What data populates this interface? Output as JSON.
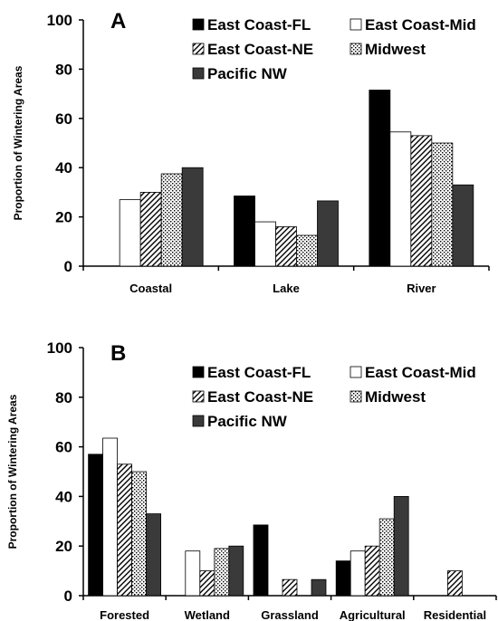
{
  "legend": {
    "series": [
      "East Coast-FL",
      "East Coast-Mid",
      "East Coast-NE",
      "Midwest",
      "Pacific NW"
    ],
    "fills": {
      "East Coast-FL": "#000000",
      "East Coast-Mid": "#ffffff",
      "East Coast-NE": "hatch",
      "Midwest": "dots",
      "Pacific NW": "#3a3a3a"
    }
  },
  "chart_data": [
    {
      "type": "bar",
      "panel_label": "A",
      "ylabel": "Proportion of Wintering Areas",
      "ylim": [
        0,
        100
      ],
      "yticks": [
        0,
        20,
        40,
        60,
        80,
        100
      ],
      "categories": [
        "Coastal",
        "Lake",
        "River"
      ],
      "series": [
        {
          "name": "East Coast-FL",
          "values": [
            0,
            28.5,
            71.5
          ]
        },
        {
          "name": "East Coast-Mid",
          "values": [
            27,
            18,
            54.5
          ]
        },
        {
          "name": "East Coast-NE",
          "values": [
            30,
            16,
            53
          ]
        },
        {
          "name": "Midwest",
          "values": [
            37.5,
            12.5,
            50
          ]
        },
        {
          "name": "Pacific NW",
          "values": [
            40,
            26.5,
            33
          ]
        }
      ],
      "legend_position": "top-right"
    },
    {
      "type": "bar",
      "panel_label": "B",
      "ylabel": "Proportion of Wintering Areas",
      "ylim": [
        0,
        100
      ],
      "yticks": [
        0,
        20,
        40,
        60,
        80,
        100
      ],
      "categories": [
        "Forested",
        "Wetland",
        "Grassland",
        "Agricultural",
        "Residential"
      ],
      "series": [
        {
          "name": "East Coast-FL",
          "values": [
            57,
            0,
            28.5,
            14,
            0
          ]
        },
        {
          "name": "East Coast-Mid",
          "values": [
            63.5,
            18,
            0,
            18,
            0
          ]
        },
        {
          "name": "East Coast-NE",
          "values": [
            53,
            10,
            6.5,
            20,
            10
          ]
        },
        {
          "name": "Midwest",
          "values": [
            50,
            19,
            0,
            31,
            0
          ]
        },
        {
          "name": "Pacific NW",
          "values": [
            33,
            20,
            6.5,
            40,
            0
          ]
        }
      ],
      "legend_position": "top-right"
    }
  ]
}
